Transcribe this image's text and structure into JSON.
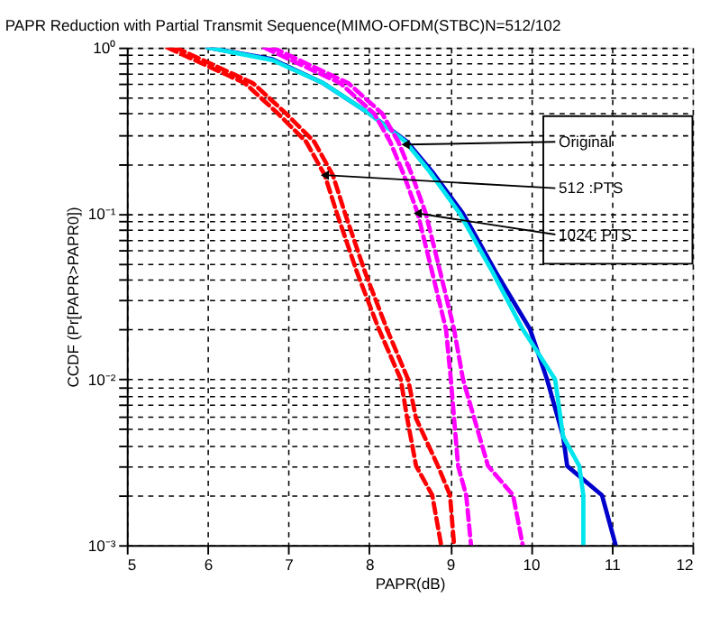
{
  "chart_data": {
    "type": "line",
    "title": "PAPR Reduction with Partial Transmit Sequence(MIMO-OFDM(STBC)N=512/102",
    "xlabel": "PAPR(dB)",
    "ylabel": "CCDF (Pr[PAPR>PAPR0])",
    "log": "y",
    "grid": true,
    "line_style": "solid",
    "marker": "none",
    "xlim": [
      5,
      12
    ],
    "xticks": [
      5,
      6,
      7,
      8,
      9,
      10,
      11,
      12
    ],
    "ylim": [
      0.001,
      1
    ],
    "yticks": [
      {
        "value": 0.001,
        "label": "10⁻³"
      },
      {
        "value": 0.002,
        "label": null
      },
      {
        "value": 0.003,
        "label": null
      },
      {
        "value": 0.004,
        "label": null
      },
      {
        "value": 0.005,
        "label": null
      },
      {
        "value": 0.006,
        "label": null
      },
      {
        "value": 0.007,
        "label": null
      },
      {
        "value": 0.008,
        "label": null
      },
      {
        "value": 0.009,
        "label": null
      },
      {
        "value": 0.01,
        "label": "10⁻²"
      },
      {
        "value": 0.02,
        "label": null
      },
      {
        "value": 0.03,
        "label": null
      },
      {
        "value": 0.04,
        "label": null
      },
      {
        "value": 0.05,
        "label": null
      },
      {
        "value": 0.06,
        "label": null
      },
      {
        "value": 0.07,
        "label": null
      },
      {
        "value": 0.08,
        "label": null
      },
      {
        "value": 0.09,
        "label": null
      },
      {
        "value": 0.1,
        "label": "10⁻¹"
      },
      {
        "value": 0.2,
        "label": null
      },
      {
        "value": 0.3,
        "label": null
      },
      {
        "value": 0.4,
        "label": null
      },
      {
        "value": 0.5,
        "label": null
      },
      {
        "value": 0.6,
        "label": null
      },
      {
        "value": 0.7,
        "label": null
      },
      {
        "value": 0.8,
        "label": null
      },
      {
        "value": 0.9,
        "label": null
      },
      {
        "value": 1,
        "label": "10⁰"
      }
    ],
    "series": [
      {
        "color": "#0000cc",
        "x": [
          6.0,
          6.8,
          7.43,
          8.0,
          8.47,
          8.78,
          9.16,
          9.57,
          9.99,
          10.2,
          10.4,
          10.45,
          10.88,
          11.05
        ],
        "values": [
          1,
          0.85,
          0.61,
          0.4,
          0.27,
          0.178,
          0.1,
          0.044,
          0.02,
          0.01,
          0.0045,
          0.003,
          0.002,
          0.001
        ]
      },
      {
        "color": "#00e5ee",
        "x": [
          6.0,
          6.8,
          7.43,
          8.0,
          8.45,
          8.75,
          9.12,
          9.53,
          9.9,
          10.3,
          10.4,
          10.6,
          10.65,
          10.65
        ],
        "values": [
          1,
          0.84,
          0.61,
          0.4,
          0.27,
          0.178,
          0.1,
          0.044,
          0.02,
          0.01,
          0.0045,
          0.003,
          0.002,
          0.001
        ]
      },
      {
        "color": "#ff0000",
        "line_style": "dashed",
        "x": [
          5.5,
          6.46,
          6.87,
          7.22,
          7.45,
          7.6,
          7.85,
          8.12,
          8.39,
          8.47,
          8.58,
          8.78,
          8.89
        ],
        "values": [
          1,
          0.61,
          0.4,
          0.27,
          0.17,
          0.1,
          0.044,
          0.02,
          0.01,
          0.0058,
          0.003,
          0.002,
          0.001
        ]
      },
      {
        "color": "#ff0000",
        "line_style": "dashed",
        "x": [
          5.6,
          6.56,
          6.97,
          7.32,
          7.55,
          7.7,
          7.95,
          8.22,
          8.48,
          8.58,
          8.85,
          9.0,
          9.05
        ],
        "values": [
          1,
          0.61,
          0.4,
          0.27,
          0.17,
          0.1,
          0.044,
          0.02,
          0.01,
          0.0058,
          0.003,
          0.002,
          0.001
        ]
      },
      {
        "color": "#ff00ff",
        "line_style": "dashed",
        "x": [
          6.7,
          7.64,
          8.06,
          8.26,
          8.43,
          8.6,
          8.78,
          8.95,
          9.01,
          9.05,
          9.1,
          9.2,
          9.26
        ],
        "values": [
          1,
          0.61,
          0.4,
          0.27,
          0.17,
          0.1,
          0.044,
          0.02,
          0.01,
          0.0058,
          0.003,
          0.002,
          0.001
        ]
      },
      {
        "color": "#ff00ff",
        "line_style": "dashed",
        "x": [
          6.8,
          7.74,
          8.16,
          8.36,
          8.53,
          8.7,
          8.88,
          9.05,
          9.16,
          9.3,
          9.47,
          9.78,
          9.9
        ],
        "values": [
          1,
          0.61,
          0.4,
          0.27,
          0.17,
          0.1,
          0.044,
          0.02,
          0.01,
          0.0058,
          0.003,
          0.002,
          0.001
        ]
      }
    ],
    "annotations": [
      {
        "text": "Original",
        "x": 8.45,
        "y": 0.26
      },
      {
        "text": "512 :PTS",
        "x": 7.45,
        "y": 0.17
      },
      {
        "text": "1024: PTS",
        "x": 8.6,
        "y": 0.1
      }
    ]
  }
}
